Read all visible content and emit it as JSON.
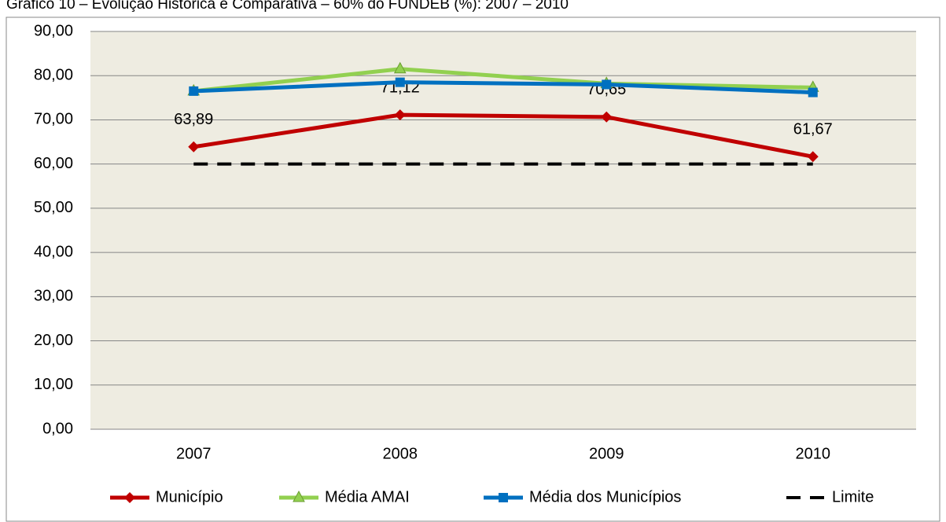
{
  "chart_data": {
    "type": "line",
    "title": "Gráfico 10 – Evolução Histórica e Comparativa – 60% do FUNDEB (%): 2007 – 2010",
    "categories": [
      "2007",
      "2008",
      "2009",
      "2010"
    ],
    "series": [
      {
        "name": "Município",
        "color": "#c00000",
        "marker": "diamond",
        "values": [
          63.89,
          71.12,
          70.65,
          61.67
        ],
        "value_labels": [
          "63,89",
          "71,12",
          "70,65",
          "61,67"
        ]
      },
      {
        "name": "Média AMAI",
        "color": "#92d050",
        "marker": "triangle",
        "values": [
          76.5,
          81.5,
          78.2,
          77.3
        ]
      },
      {
        "name": "Média dos Municípios",
        "color": "#0070c0",
        "marker": "square",
        "values": [
          76.5,
          78.5,
          78.0,
          76.2
        ]
      },
      {
        "name": "Limite",
        "color": "#000000",
        "dash": true,
        "values": [
          60,
          60,
          60,
          60
        ]
      }
    ],
    "ylim": [
      0,
      90
    ],
    "yticks": [
      {
        "value": 0,
        "label": "0,00"
      },
      {
        "value": 10,
        "label": "10,00"
      },
      {
        "value": 20,
        "label": "20,00"
      },
      {
        "value": 30,
        "label": "30,00"
      },
      {
        "value": 40,
        "label": "40,00"
      },
      {
        "value": 50,
        "label": "50,00"
      },
      {
        "value": 60,
        "label": "60,00"
      },
      {
        "value": 70,
        "label": "70,00"
      },
      {
        "value": 80,
        "label": "80,00"
      },
      {
        "value": 90,
        "label": "90,00"
      }
    ],
    "grid": true,
    "legend": "bottom"
  }
}
